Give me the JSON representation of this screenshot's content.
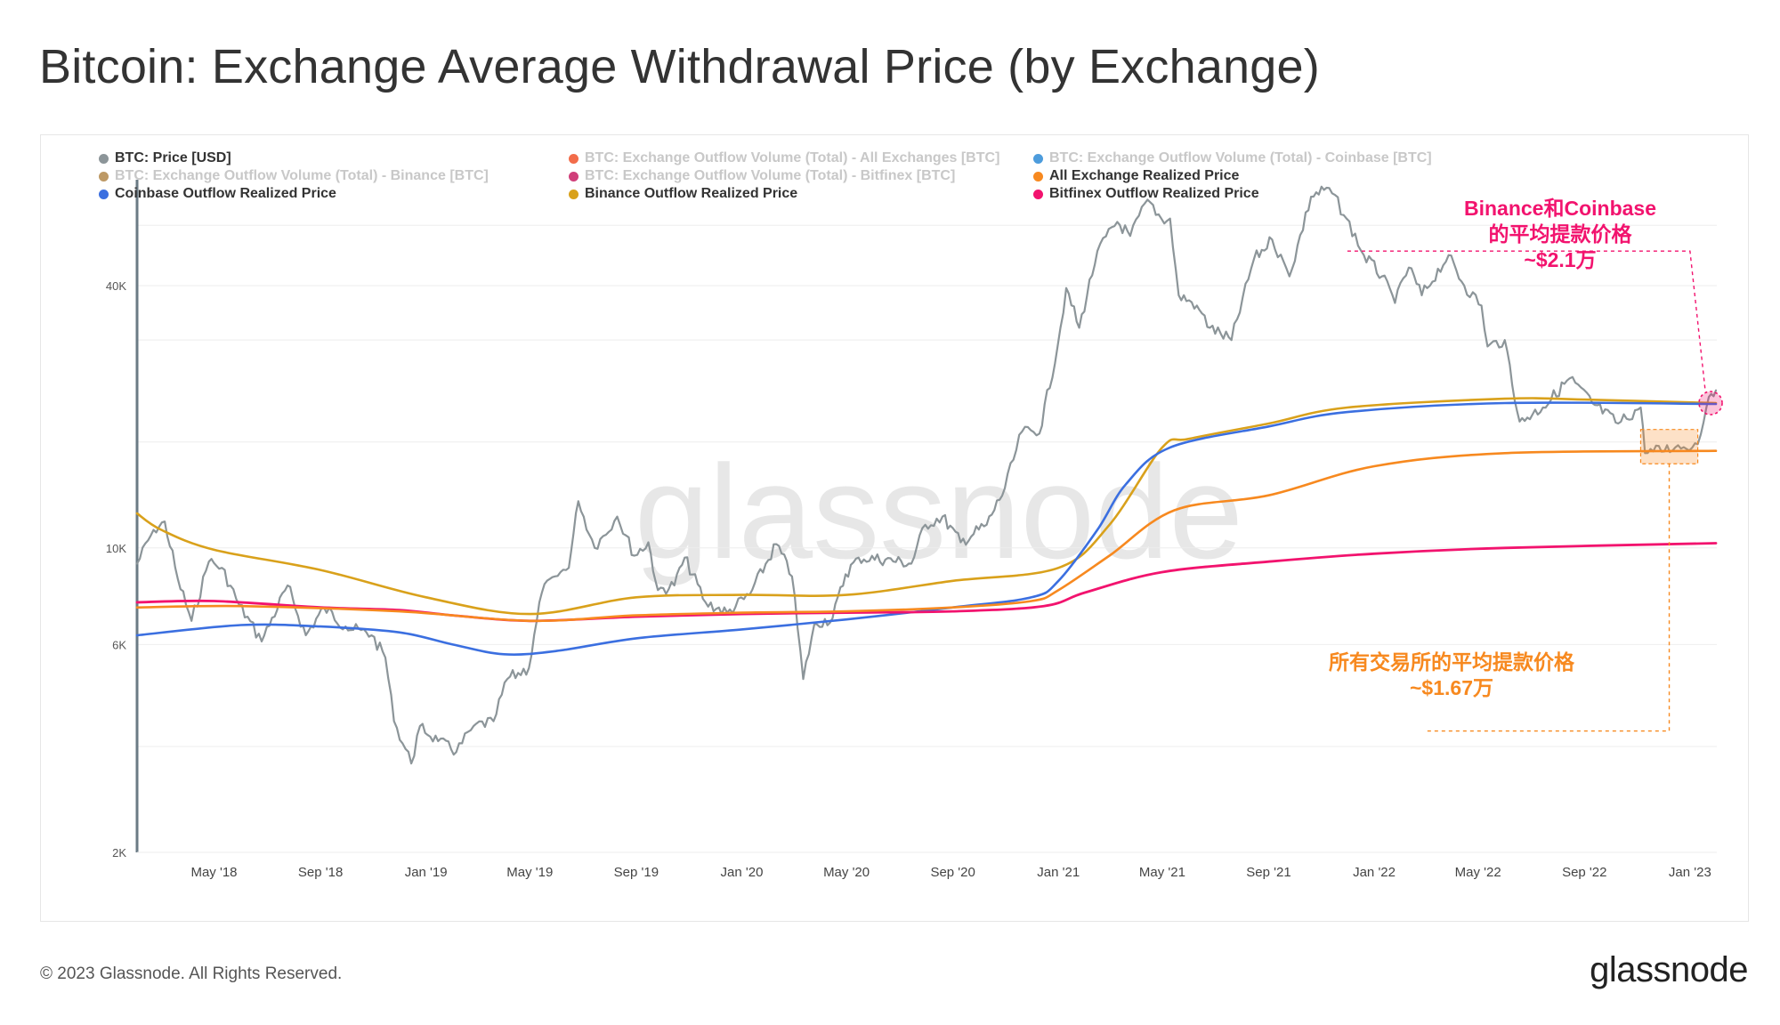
{
  "title": "Bitcoin: Exchange Average Withdrawal Price (by Exchange)",
  "footer": {
    "copyright": "© 2023 Glassnode. All Rights Reserved.",
    "logo": "glassnode"
  },
  "watermark": "glassnode",
  "legend": [
    {
      "label": "BTC: Price [USD]",
      "color": "#8c9599",
      "active": true
    },
    {
      "label": "BTC: Exchange Outflow Volume (Total) - All Exchanges [BTC]",
      "color": "#f0522a",
      "active": false
    },
    {
      "label": "BTC: Exchange Outflow Volume (Total) - Coinbase [BTC]",
      "color": "#2e8bd6",
      "active": false
    },
    {
      "label": "BTC: Exchange Outflow Volume (Total) - Binance [BTC]",
      "color": "#b2874a",
      "active": false
    },
    {
      "label": "BTC: Exchange Outflow Volume (Total) - Bitfinex [BTC]",
      "color": "#c81d63",
      "active": false
    },
    {
      "label": "All Exchange Realized Price",
      "color": "#f7891f",
      "active": true
    },
    {
      "label": "Coinbase Outflow Realized Price",
      "color": "#3b6fe0",
      "active": true
    },
    {
      "label": "Binance Outflow Realized Price",
      "color": "#d9a11b",
      "active": true
    },
    {
      "label": "Bitfinex Outflow Realized Price",
      "color": "#f2136e",
      "active": true
    }
  ],
  "annotations": {
    "binance_coinbase": {
      "line1": "Binance和Coinbase",
      "line2": "的平均提款价格",
      "line3": "~$2.1万",
      "color": "#f2136e"
    },
    "all_exchanges": {
      "line1": "所有交易所的平均提款价格",
      "line2": "~$1.67万",
      "color": "#f7891f"
    }
  },
  "chart_data": {
    "type": "line",
    "yscale": "log",
    "ylim": [
      2000,
      70000
    ],
    "y_ticks": [
      2000,
      6000,
      10000,
      40000
    ],
    "y_tick_labels": [
      "2K",
      "6K",
      "10K",
      "40K"
    ],
    "x_range": [
      "2018-02",
      "2023-02"
    ],
    "x_ticks": [
      "2018-05",
      "2018-09",
      "2019-01",
      "2019-05",
      "2019-09",
      "2020-01",
      "2020-05",
      "2020-09",
      "2021-01",
      "2021-05",
      "2021-09",
      "2022-01",
      "2022-05",
      "2022-09",
      "2023-01"
    ],
    "x_tick_labels": [
      "May '18",
      "Sep '18",
      "Jan '19",
      "May '19",
      "Sep '19",
      "Jan '20",
      "May '20",
      "Sep '20",
      "Jan '21",
      "May '21",
      "Sep '21",
      "Jan '22",
      "May '22",
      "Sep '22",
      "Jan '23"
    ],
    "series": [
      {
        "name": "BTC: Price [USD]",
        "color": "#8c9599",
        "width": 2.2,
        "points": [
          [
            "2018-02-01",
            9200
          ],
          [
            "2018-02-20",
            11000
          ],
          [
            "2018-03-05",
            11500
          ],
          [
            "2018-03-20",
            8500
          ],
          [
            "2018-04-05",
            6800
          ],
          [
            "2018-04-25",
            9300
          ],
          [
            "2018-05-10",
            9000
          ],
          [
            "2018-05-30",
            7400
          ],
          [
            "2018-06-25",
            6100
          ],
          [
            "2018-07-25",
            8200
          ],
          [
            "2018-08-15",
            6300
          ],
          [
            "2018-09-05",
            7300
          ],
          [
            "2018-09-30",
            6600
          ],
          [
            "2018-10-30",
            6300
          ],
          [
            "2018-11-15",
            5600
          ],
          [
            "2018-11-25",
            4000
          ],
          [
            "2018-12-15",
            3200
          ],
          [
            "2018-12-25",
            3900
          ],
          [
            "2019-01-15",
            3600
          ],
          [
            "2019-02-05",
            3400
          ],
          [
            "2019-02-25",
            3900
          ],
          [
            "2019-03-20",
            4000
          ],
          [
            "2019-04-05",
            5000
          ],
          [
            "2019-04-30",
            5300
          ],
          [
            "2019-05-15",
            7900
          ],
          [
            "2019-05-30",
            8600
          ],
          [
            "2019-06-15",
            9000
          ],
          [
            "2019-06-26",
            12800
          ],
          [
            "2019-07-15",
            10000
          ],
          [
            "2019-08-10",
            11800
          ],
          [
            "2019-08-30",
            9600
          ],
          [
            "2019-09-15",
            10300
          ],
          [
            "2019-09-26",
            8000
          ],
          [
            "2019-10-15",
            8200
          ],
          [
            "2019-10-27",
            9500
          ],
          [
            "2019-11-20",
            7500
          ],
          [
            "2019-12-15",
            7100
          ],
          [
            "2020-01-10",
            7800
          ],
          [
            "2020-02-10",
            10200
          ],
          [
            "2020-02-28",
            8600
          ],
          [
            "2020-03-12",
            5000
          ],
          [
            "2020-03-25",
            6700
          ],
          [
            "2020-04-15",
            6900
          ],
          [
            "2020-04-30",
            8700
          ],
          [
            "2020-05-15",
            9500
          ],
          [
            "2020-06-15",
            9400
          ],
          [
            "2020-07-15",
            9200
          ],
          [
            "2020-07-31",
            11300
          ],
          [
            "2020-08-20",
            11800
          ],
          [
            "2020-09-10",
            10300
          ],
          [
            "2020-10-10",
            11300
          ],
          [
            "2020-10-31",
            13700
          ],
          [
            "2020-11-20",
            18500
          ],
          [
            "2020-12-10",
            18300
          ],
          [
            "2020-12-31",
            29000
          ],
          [
            "2021-01-10",
            39500
          ],
          [
            "2021-01-25",
            32000
          ],
          [
            "2021-02-15",
            48000
          ],
          [
            "2021-03-10",
            56000
          ],
          [
            "2021-03-25",
            52000
          ],
          [
            "2021-04-14",
            63000
          ],
          [
            "2021-04-30",
            57000
          ],
          [
            "2021-05-10",
            57000
          ],
          [
            "2021-05-20",
            38000
          ],
          [
            "2021-06-10",
            36000
          ],
          [
            "2021-06-25",
            32000
          ],
          [
            "2021-07-20",
            30000
          ],
          [
            "2021-08-15",
            46000
          ],
          [
            "2021-09-05",
            51000
          ],
          [
            "2021-09-25",
            42000
          ],
          [
            "2021-10-20",
            64000
          ],
          [
            "2021-11-10",
            67000
          ],
          [
            "2021-11-30",
            57000
          ],
          [
            "2021-12-20",
            47000
          ],
          [
            "2022-01-10",
            42000
          ],
          [
            "2022-01-25",
            36500
          ],
          [
            "2022-02-10",
            44000
          ],
          [
            "2022-02-25",
            38000
          ],
          [
            "2022-03-28",
            47000
          ],
          [
            "2022-04-15",
            40000
          ],
          [
            "2022-05-05",
            36000
          ],
          [
            "2022-05-12",
            29000
          ],
          [
            "2022-06-01",
            30000
          ],
          [
            "2022-06-18",
            19500
          ],
          [
            "2022-07-15",
            21000
          ],
          [
            "2022-08-15",
            24500
          ],
          [
            "2022-09-10",
            21500
          ],
          [
            "2022-10-10",
            19300
          ],
          [
            "2022-11-05",
            21000
          ],
          [
            "2022-11-10",
            16500
          ],
          [
            "2022-12-15",
            17000
          ],
          [
            "2023-01-10",
            17300
          ],
          [
            "2023-01-20",
            21000
          ],
          [
            "2023-01-31",
            23000
          ]
        ]
      },
      {
        "name": "Binance Outflow Realized Price",
        "color": "#d9a11b",
        "width": 2.6,
        "points": [
          [
            "2018-02-01",
            12000
          ],
          [
            "2018-03-01",
            11000
          ],
          [
            "2018-05-01",
            9900
          ],
          [
            "2018-09-01",
            8900
          ],
          [
            "2019-01-01",
            7700
          ],
          [
            "2019-05-01",
            7050
          ],
          [
            "2019-09-01",
            7700
          ],
          [
            "2020-01-01",
            7800
          ],
          [
            "2020-05-01",
            7800
          ],
          [
            "2020-09-01",
            8400
          ],
          [
            "2021-01-01",
            9000
          ],
          [
            "2021-03-01",
            11300
          ],
          [
            "2021-05-01",
            17000
          ],
          [
            "2021-06-01",
            17800
          ],
          [
            "2021-09-01",
            19300
          ],
          [
            "2021-12-01",
            21000
          ],
          [
            "2022-06-01",
            22000
          ],
          [
            "2022-09-01",
            21900
          ],
          [
            "2023-01-31",
            21500
          ]
        ]
      },
      {
        "name": "Coinbase Outflow Realized Price",
        "color": "#3b6fe0",
        "width": 2.6,
        "points": [
          [
            "2018-02-01",
            6300
          ],
          [
            "2018-06-01",
            6650
          ],
          [
            "2018-09-01",
            6600
          ],
          [
            "2018-12-01",
            6400
          ],
          [
            "2019-02-01",
            6000
          ],
          [
            "2019-04-01",
            5700
          ],
          [
            "2019-06-01",
            5800
          ],
          [
            "2019-09-01",
            6200
          ],
          [
            "2020-01-01",
            6500
          ],
          [
            "2020-05-01",
            6850
          ],
          [
            "2020-09-01",
            7300
          ],
          [
            "2020-12-01",
            7700
          ],
          [
            "2021-01-01",
            8400
          ],
          [
            "2021-02-15",
            11000
          ],
          [
            "2021-03-20",
            14000
          ],
          [
            "2021-05-10",
            17000
          ],
          [
            "2021-09-01",
            19000
          ],
          [
            "2021-12-01",
            20500
          ],
          [
            "2022-06-01",
            21500
          ],
          [
            "2023-01-31",
            21400
          ]
        ]
      },
      {
        "name": "Bitfinex Outflow Realized Price",
        "color": "#f2136e",
        "width": 2.8,
        "points": [
          [
            "2018-02-01",
            7500
          ],
          [
            "2018-05-01",
            7550
          ],
          [
            "2018-09-01",
            7300
          ],
          [
            "2018-12-01",
            7200
          ],
          [
            "2019-02-01",
            7000
          ],
          [
            "2019-05-01",
            6800
          ],
          [
            "2019-09-01",
            6950
          ],
          [
            "2020-01-01",
            7050
          ],
          [
            "2020-05-01",
            7100
          ],
          [
            "2020-09-01",
            7150
          ],
          [
            "2020-12-15",
            7350
          ],
          [
            "2021-02-01",
            7900
          ],
          [
            "2021-05-01",
            8800
          ],
          [
            "2021-09-01",
            9300
          ],
          [
            "2022-01-01",
            9700
          ],
          [
            "2022-06-01",
            10000
          ],
          [
            "2023-01-31",
            10250
          ]
        ]
      },
      {
        "name": "All Exchange Realized Price",
        "color": "#f7891f",
        "width": 2.6,
        "points": [
          [
            "2018-02-01",
            7300
          ],
          [
            "2018-06-01",
            7350
          ],
          [
            "2018-12-01",
            7150
          ],
          [
            "2019-05-01",
            6800
          ],
          [
            "2019-09-01",
            7000
          ],
          [
            "2020-01-01",
            7100
          ],
          [
            "2020-05-01",
            7150
          ],
          [
            "2020-09-01",
            7300
          ],
          [
            "2020-12-01",
            7550
          ],
          [
            "2021-01-01",
            8000
          ],
          [
            "2021-03-01",
            9600
          ],
          [
            "2021-05-15",
            12200
          ],
          [
            "2021-09-01",
            13200
          ],
          [
            "2022-01-01",
            15400
          ],
          [
            "2022-06-01",
            16500
          ],
          [
            "2023-01-31",
            16700
          ]
        ]
      }
    ]
  }
}
